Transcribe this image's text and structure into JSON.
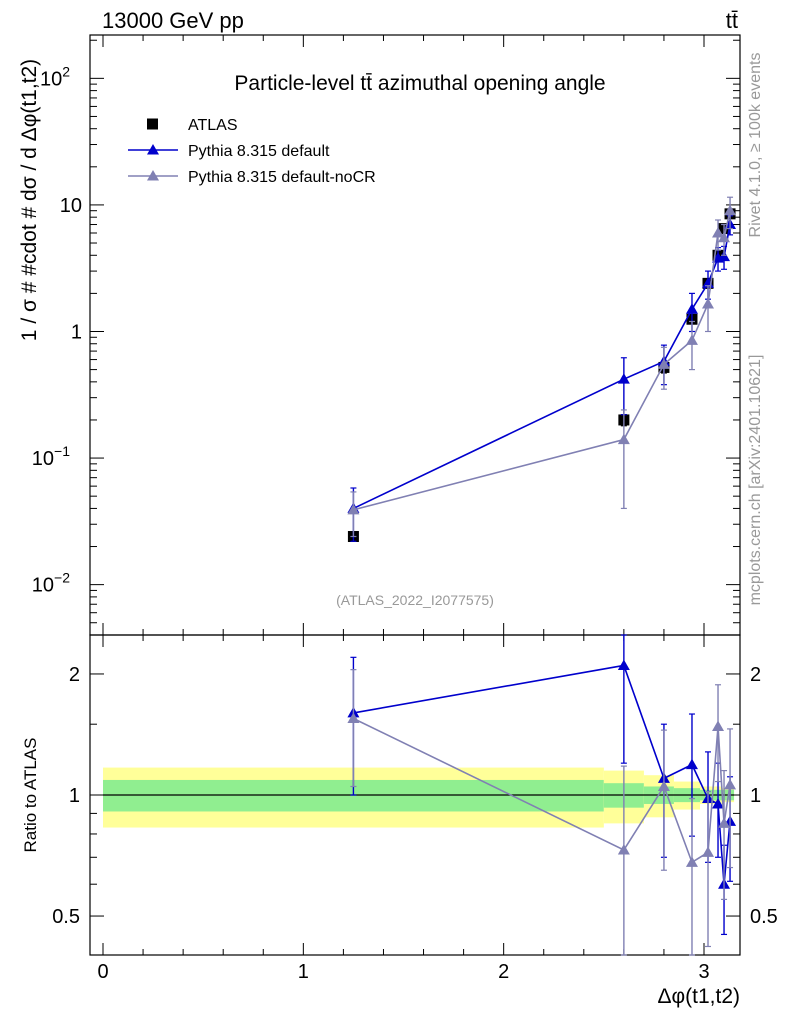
{
  "header": {
    "left": "13000 GeV pp",
    "right": "tt̄",
    "side_top": "Rivet 4.1.0, ≥ 100k events",
    "side_bottom": "mcplots.cern.ch [arXiv:2401.10621]"
  },
  "chart_data": [
    {
      "type": "scatter",
      "panel": "main",
      "title": "Particle-level tt̄ azimuthal opening angle",
      "analysis_label": "(ATLAS_2022_I2077575)",
      "xlabel": "Δφ(t1,t2)",
      "ylabel": "1 / σ # #cdot # dσ / d Δφ(t1,t2)",
      "yscale": "log",
      "ylim": [
        0.004,
        220
      ],
      "xlim": [
        -0.1,
        3.2
      ],
      "y_ticks": [
        {
          "value": 0.01,
          "base": "10",
          "exp": "−2"
        },
        {
          "value": 0.1,
          "base": "10",
          "exp": "−1"
        },
        {
          "value": 1,
          "base": "1",
          "exp": ""
        },
        {
          "value": 10,
          "base": "10",
          "exp": ""
        },
        {
          "value": 100,
          "base": "10",
          "exp": "2"
        }
      ],
      "legend": [
        {
          "label": "ATLAS",
          "color": "#000000",
          "marker": "square"
        },
        {
          "label": "Pythia 8.315 default",
          "color": "#0000cc",
          "marker": "triangle"
        },
        {
          "label": "Pythia 8.315 default-noCR",
          "color": "#8080b3",
          "marker": "triangle"
        }
      ],
      "series": [
        {
          "name": "ATLAS",
          "color": "#000000",
          "marker": "square",
          "x": [
            1.25,
            2.6,
            2.8,
            2.94,
            3.02,
            3.07,
            3.1,
            3.13
          ],
          "y": [
            0.024,
            0.2,
            0.52,
            1.25,
            2.4,
            4.0,
            6.5,
            8.5
          ],
          "err": [
            0.002,
            0.02,
            0.05,
            0.1,
            0.2,
            0.3,
            0.5,
            0.6
          ]
        },
        {
          "name": "Pythia 8.315 default",
          "color": "#0000cc",
          "marker": "triangle",
          "x": [
            1.25,
            2.6,
            2.8,
            2.94,
            3.02,
            3.07,
            3.1,
            3.13
          ],
          "y": [
            0.04,
            0.42,
            0.58,
            1.5,
            2.4,
            3.8,
            3.9,
            7.0
          ],
          "err": [
            0.018,
            0.2,
            0.2,
            0.5,
            0.6,
            0.8,
            0.8,
            1.2
          ]
        },
        {
          "name": "Pythia 8.315 default-noCR",
          "color": "#8080b3",
          "marker": "triangle",
          "x": [
            1.25,
            2.6,
            2.8,
            2.94,
            3.02,
            3.07,
            3.1,
            3.13
          ],
          "y": [
            0.039,
            0.14,
            0.55,
            0.85,
            1.65,
            6.0,
            5.5,
            9.0
          ],
          "err": [
            0.015,
            0.1,
            0.2,
            0.35,
            0.65,
            1.6,
            1.5,
            2.5
          ]
        }
      ]
    },
    {
      "type": "scatter",
      "panel": "ratio",
      "ylabel": "Ratio to ATLAS",
      "xlabel": "Δφ(t1,t2)",
      "yscale": "log",
      "ylim": [
        0.4,
        2.5
      ],
      "xlim": [
        -0.1,
        3.2
      ],
      "y_ticks": [
        0.5,
        1,
        2
      ],
      "x_ticks": [
        0,
        1,
        2,
        3
      ],
      "uncertainty_bands": {
        "edges": [
          0,
          2.5,
          2.7,
          2.85,
          2.98,
          3.05,
          3.09,
          3.11,
          3.15
        ],
        "inner": [
          0.09,
          0.07,
          0.05,
          0.04,
          0.03,
          0.03,
          0.03,
          0.03
        ],
        "outer": [
          0.17,
          0.15,
          0.12,
          0.08,
          0.05,
          0.05,
          0.04,
          0.04
        ],
        "inner_color": "#90ee90",
        "outer_color": "#ffff99"
      },
      "series": [
        {
          "name": "Pythia 8.315 default",
          "color": "#0000cc",
          "x": [
            1.25,
            2.6,
            2.8,
            2.94,
            3.02,
            3.07,
            3.1,
            3.13
          ],
          "y": [
            1.6,
            2.1,
            1.1,
            1.19,
            0.98,
            0.95,
            0.6,
            0.86
          ],
          "err": [
            0.6,
            0.9,
            0.4,
            0.4,
            0.3,
            0.25,
            0.15,
            0.25
          ]
        },
        {
          "name": "Pythia 8.315 default-noCR",
          "color": "#8080b3",
          "x": [
            1.25,
            2.6,
            2.8,
            2.94,
            3.02,
            3.07,
            3.1,
            3.13
          ],
          "y": [
            1.55,
            0.73,
            1.05,
            0.68,
            0.72,
            1.48,
            0.85,
            1.06
          ],
          "err": [
            0.5,
            0.45,
            0.4,
            0.3,
            0.3,
            0.4,
            0.3,
            0.4
          ]
        }
      ]
    }
  ]
}
